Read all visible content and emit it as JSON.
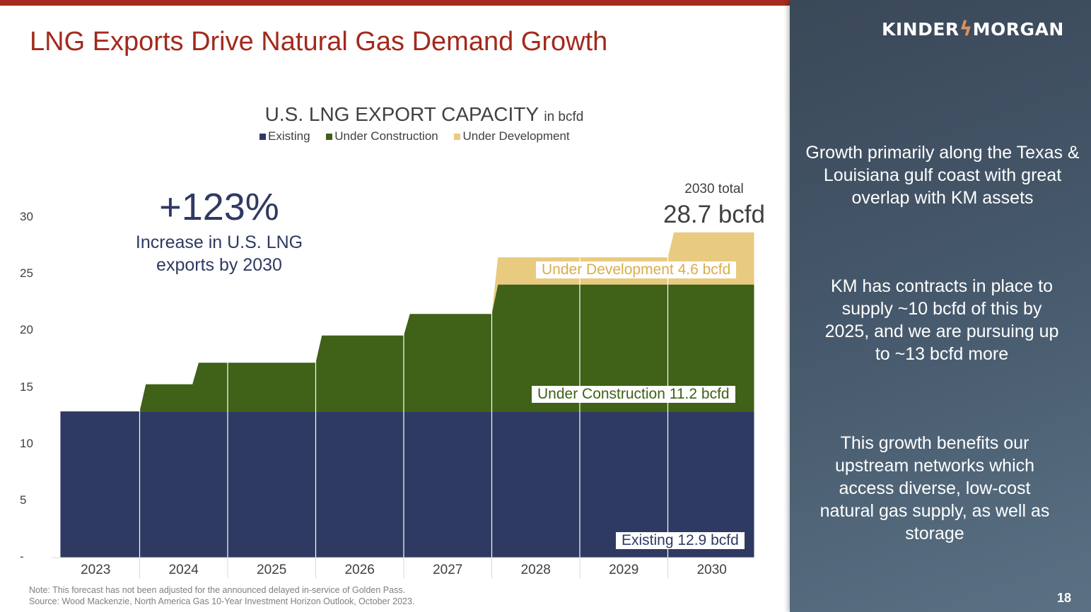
{
  "slide": {
    "title": "LNG Exports Drive Natural Gas Demand Growth",
    "page_number": "18",
    "note": "Note:  This forecast has not been adjusted for the announced delayed in-service of Golden Pass.",
    "source": "Source:  Wood Mackenzie, North America Gas 10-Year Investment Horizon Outlook, October 2023."
  },
  "brand": {
    "logo_left": "KINDER",
    "logo_right": "MORGAN",
    "accent": "#a3291c"
  },
  "sidebar": {
    "points": [
      "Growth primarily along the Texas & Louisiana gulf coast with great overlap with KM assets",
      "KM has contracts in place to supply ~10 bcfd of this by 2025, and we are pursuing up to ~13 bcfd more",
      "This growth benefits our upstream networks which access diverse, low-cost natural gas supply, as well as storage"
    ]
  },
  "callout": {
    "value": "+123%",
    "text_line1": "Increase in U.S. LNG",
    "text_line2": "exports by 2030"
  },
  "total": {
    "label": "2030 total",
    "value": "28.7 bcfd"
  },
  "chart_data": {
    "type": "area",
    "stacked": true,
    "step": true,
    "title": "U.S. LNG EXPORT CAPACITY",
    "title_unit": "in bcfd",
    "categories": [
      "2023",
      "2024",
      "2025",
      "2026",
      "2027",
      "2028",
      "2029",
      "2030"
    ],
    "yticks": [
      "-",
      "5",
      "10",
      "15",
      "20",
      "25",
      "30"
    ],
    "ylim": [
      0,
      30
    ],
    "legend_position": "top",
    "series": [
      {
        "name": "Existing",
        "color": "#2e3a61",
        "label": "Existing 12.9 bcfd",
        "steps": [
          [
            2023.1,
            12.9
          ]
        ]
      },
      {
        "name": "Under Construction",
        "color": "#3f6118",
        "label": "Under Construction 11.2 bcfd",
        "steps": [
          [
            2023.1,
            0
          ],
          [
            2024.0,
            2.4
          ],
          [
            2024.6,
            4.3
          ],
          [
            2026.0,
            6.7
          ],
          [
            2027.0,
            8.6
          ],
          [
            2028.0,
            11.2
          ]
        ]
      },
      {
        "name": "Under Development",
        "color": "#e8cb7f",
        "label": "Under Development 4.6 bcfd",
        "steps": [
          [
            2023.1,
            0
          ],
          [
            2028.0,
            2.4
          ],
          [
            2030.0,
            4.6
          ]
        ]
      }
    ],
    "x_end": 2030.98
  }
}
